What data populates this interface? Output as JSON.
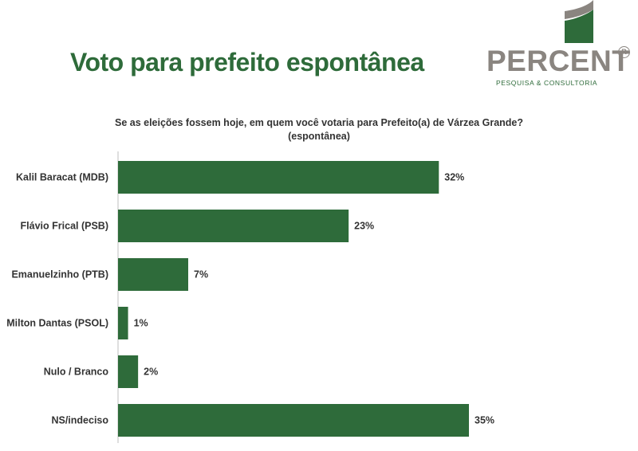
{
  "header": {
    "title": "Voto para prefeito espontânea"
  },
  "logo": {
    "name": "PERCENT",
    "registered": "R",
    "tagline": "PESQUISA & CONSULTORIA",
    "colors": {
      "gray": "#8a8580",
      "green": "#2e6b3a"
    }
  },
  "chart_data": {
    "type": "bar",
    "orientation": "horizontal",
    "title": "Se as eleições fossem hoje, em quem você votaria para Prefeito(a) de Várzea Grande?",
    "subtitle": "(espontânea)",
    "categories": [
      "Kalil Baracat (MDB)",
      "Flávio Frical (PSB)",
      "Emanuelzinho (PTB)",
      "Milton Dantas (PSOL)",
      "Nulo / Branco",
      "NS/indeciso"
    ],
    "values": [
      32,
      23,
      7,
      1,
      2,
      35
    ],
    "value_labels": [
      "32%",
      "23%",
      "7%",
      "1%",
      "2%",
      "35%"
    ],
    "xlim": [
      0,
      35
    ],
    "bar_color": "#2e6b3a",
    "grid": false,
    "legend": "none"
  }
}
